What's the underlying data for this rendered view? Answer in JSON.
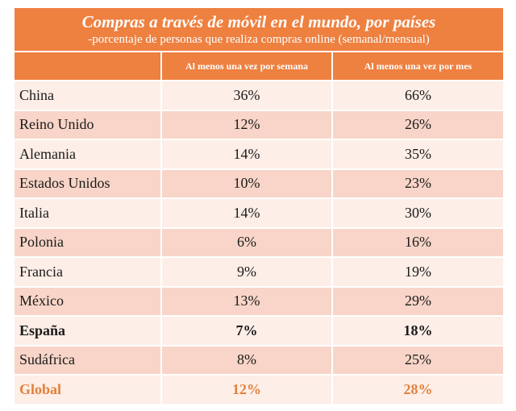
{
  "chart_data": {
    "type": "table",
    "title": "Compras a través de móvil en el mundo, por países",
    "subtitle": "-porcentaje de personas que realiza compras online (semanal/mensual)",
    "columns": [
      "",
      "Al menos una vez por semana",
      "Al menos una vez por mes"
    ],
    "rows": [
      {
        "country": "China",
        "weekly": "36%",
        "monthly": "66%"
      },
      {
        "country": "Reino Unido",
        "weekly": "12%",
        "monthly": "26%"
      },
      {
        "country": "Alemania",
        "weekly": "14%",
        "monthly": "35%"
      },
      {
        "country": "Estados Unidos",
        "weekly": "10%",
        "monthly": "23%"
      },
      {
        "country": "Italia",
        "weekly": "14%",
        "monthly": "30%"
      },
      {
        "country": "Polonia",
        "weekly": "6%",
        "monthly": "16%"
      },
      {
        "country": "Francia",
        "weekly": "9%",
        "monthly": "19%"
      },
      {
        "country": "México",
        "weekly": "13%",
        "monthly": "29%"
      },
      {
        "country": "España",
        "weekly": "7%",
        "monthly": "18%",
        "highlight": true
      },
      {
        "country": "Sudáfrica",
        "weekly": "8%",
        "monthly": "25%"
      }
    ],
    "total": {
      "country": "Global",
      "weekly": "12%",
      "monthly": "28%"
    }
  },
  "colors": {
    "header": "#ee8040",
    "row_light": "#fdeee7",
    "row_dark": "#f8d5c8",
    "total_text": "#e2813c"
  }
}
